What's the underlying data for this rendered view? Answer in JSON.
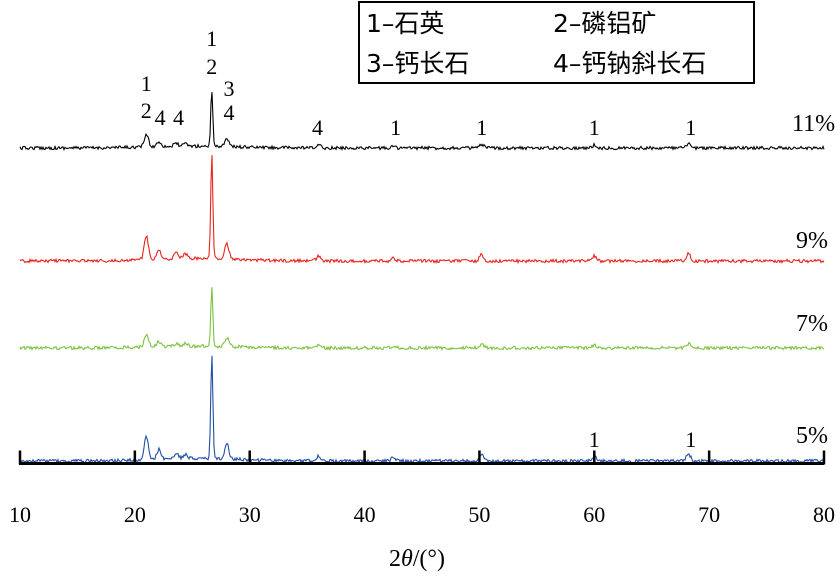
{
  "chart_data": {
    "type": "line",
    "xlabel_prefix": "2",
    "xlabel_symbol": "θ",
    "xlabel_suffix": "/(°)",
    "xlim": [
      10,
      80
    ],
    "xticks": [
      10,
      20,
      30,
      40,
      50,
      60,
      70,
      80
    ],
    "grid": false,
    "legend_position": "top-right",
    "legend": [
      {
        "key": "1",
        "name": "石英"
      },
      {
        "key": "2",
        "name": "磷铝矿"
      },
      {
        "key": "3",
        "name": "钙长石"
      },
      {
        "key": "4",
        "name": "钙钠斜长石"
      }
    ],
    "series": [
      {
        "name": "11%",
        "color": "#000000",
        "intensity_scale": 0.75
      },
      {
        "name": "9%",
        "color": "#e8241b",
        "intensity_scale": 1.0
      },
      {
        "name": "7%",
        "color": "#7cc242",
        "intensity_scale": 0.75
      },
      {
        "name": "5%",
        "color": "#1f4fa3",
        "intensity_scale": 1.0
      }
    ],
    "peaks": [
      {
        "x": 21.0,
        "h": 0.22
      },
      {
        "x": 22.1,
        "h": 0.09
      },
      {
        "x": 23.6,
        "h": 0.05
      },
      {
        "x": 24.4,
        "h": 0.04
      },
      {
        "x": 26.7,
        "h": 1.0
      },
      {
        "x": 28.0,
        "h": 0.15
      },
      {
        "x": 36.0,
        "h": 0.05
      },
      {
        "x": 42.5,
        "h": 0.03
      },
      {
        "x": 50.2,
        "h": 0.06
      },
      {
        "x": 60.0,
        "h": 0.05
      },
      {
        "x": 68.2,
        "h": 0.07
      }
    ],
    "annotations": [
      {
        "text": "1",
        "x": 21.0,
        "series": "11%"
      },
      {
        "text": "2",
        "x": 21.0,
        "series": "11%"
      },
      {
        "text": "4",
        "x": 22.2,
        "series": "11%"
      },
      {
        "text": "4",
        "x": 23.8,
        "series": "11%"
      },
      {
        "text": "1",
        "x": 26.7,
        "series": "11%"
      },
      {
        "text": "2",
        "x": 26.7,
        "series": "11%"
      },
      {
        "text": "3",
        "x": 28.2,
        "series": "11%"
      },
      {
        "text": "4",
        "x": 28.2,
        "series": "11%"
      },
      {
        "text": "4",
        "x": 35.9,
        "series": "11%"
      },
      {
        "text": "1",
        "x": 42.7,
        "series": "11%"
      },
      {
        "text": "1",
        "x": 50.2,
        "series": "11%"
      },
      {
        "text": "1",
        "x": 60.0,
        "series": "11%"
      },
      {
        "text": "1",
        "x": 68.4,
        "series": "11%"
      },
      {
        "text": "1",
        "x": 60.0,
        "series": "5%"
      },
      {
        "text": "1",
        "x": 68.4,
        "series": "5%"
      }
    ]
  }
}
